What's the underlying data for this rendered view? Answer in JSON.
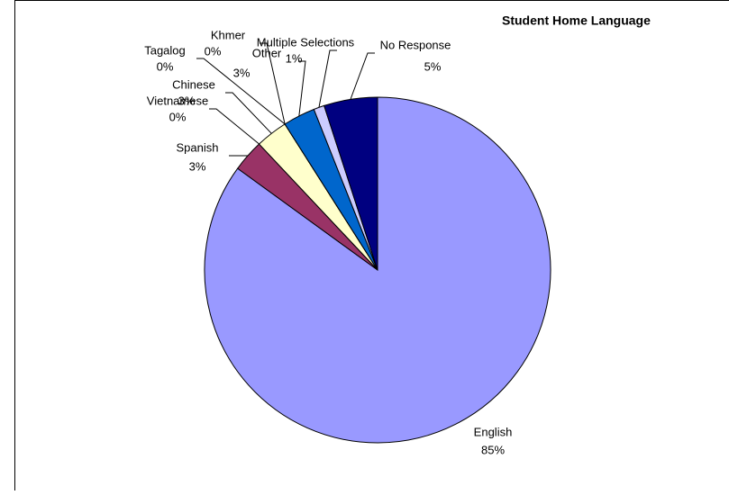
{
  "chart_data": {
    "type": "pie",
    "title": "Student Home Language",
    "categories": [
      "English",
      "Spanish",
      "Vietnamese",
      "Chinese",
      "Tagalog",
      "Khmer",
      "Other",
      "Multiple Selections",
      "No Response"
    ],
    "values": [
      85,
      3,
      0,
      3,
      0,
      0,
      3,
      1,
      5
    ],
    "value_labels": [
      "85%",
      "3%",
      "0%",
      "3%",
      "0%",
      "0%",
      "3%",
      "1%",
      "5%"
    ],
    "colors": [
      "#9999ff",
      "#993366",
      "#ffffcc",
      "#ffffcc",
      "#a0e0e0",
      "#660066",
      "#0066cc",
      "#ccccff",
      "#000080"
    ]
  }
}
